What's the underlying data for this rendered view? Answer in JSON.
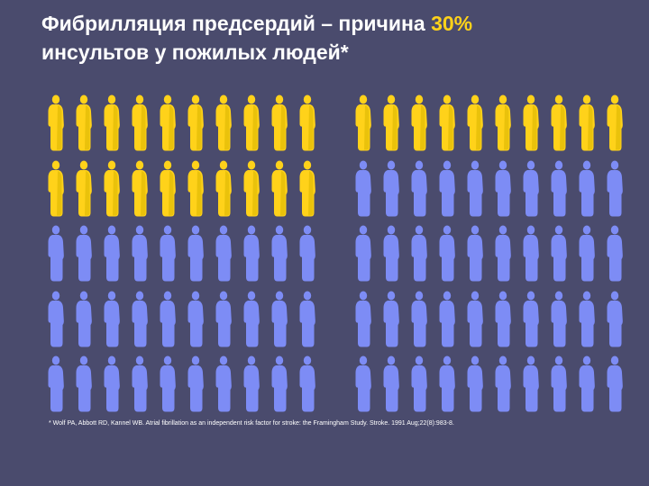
{
  "title": {
    "line1_prefix": "Фибрилляция предсердий – причина ",
    "highlight": "30%",
    "line2": "инсультов у пожилых людей*"
  },
  "colors": {
    "background": "#4a4b6d",
    "affected": "#ffd21a",
    "unaffected": "#7d8cf5",
    "title_text": "#ffffff",
    "highlight_text": "#ffd21a"
  },
  "icon": "person-silhouette-icon",
  "groups": [
    {
      "name": "left",
      "total": 50,
      "affected": 20,
      "columns": 10
    },
    {
      "name": "right",
      "total": 50,
      "affected": 10,
      "columns": 10
    }
  ],
  "footnote": "* Wolf PA, Abbott RD, Kannel WB. Atrial fibrillation as an independent risk factor for stroke: the Framingham Study. Stroke. 1991 Aug;22(8):983-8."
}
